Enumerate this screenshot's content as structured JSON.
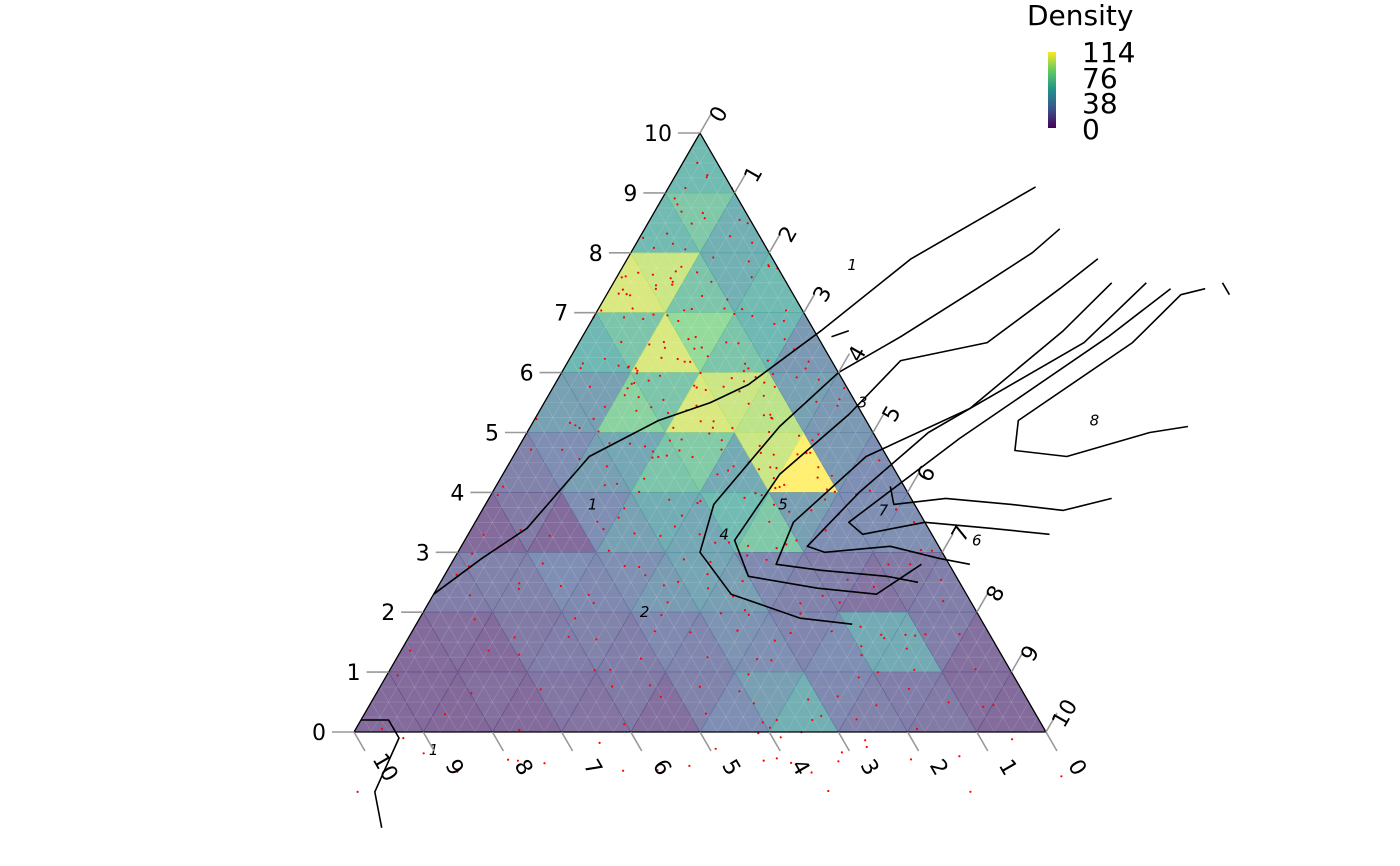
{
  "chart_data": {
    "type": "heatmap",
    "subtype": "ternary density plot with contours and points",
    "axes": {
      "left": {
        "ticks": [
          0,
          1,
          2,
          3,
          4,
          5,
          6,
          7,
          8,
          9,
          10
        ]
      },
      "right": {
        "ticks": [
          0,
          1,
          2,
          3,
          4,
          5,
          6,
          7,
          8,
          9,
          10
        ]
      },
      "bottom": {
        "ticks": [
          10,
          9,
          8,
          7,
          6,
          5,
          4,
          3,
          2,
          1,
          0
        ]
      }
    },
    "legend": {
      "title": "Density",
      "labels": [
        "114",
        "76",
        "38",
        "0"
      ],
      "placement": "top-right",
      "range": [
        0,
        114
      ],
      "colors": [
        "#440154",
        "#3b528b",
        "#21908c",
        "#5dc963",
        "#fde725"
      ]
    },
    "cell_opacity": 0.65,
    "density_bins": [
      {
        "top": 0,
        "bottom": 1,
        "values": [
          60
        ]
      },
      {
        "top": 1,
        "bottom": 2,
        "values": [
          60,
          70,
          52
        ]
      },
      {
        "top": 2,
        "bottom": 3,
        "values": [
          104,
          100,
          68,
          52,
          60
        ]
      },
      {
        "top": 3,
        "bottom": 4,
        "values": [
          58,
          68,
          104,
          84,
          68,
          58,
          36
        ]
      },
      {
        "top": 4,
        "bottom": 5,
        "values": [
          42,
          40,
          78,
          68,
          104,
          100,
          96,
          42,
          36
        ]
      },
      {
        "top": 5,
        "bottom": 6,
        "values": [
          22,
          28,
          40,
          46,
          68,
          72,
          48,
          100,
          114,
          36,
          28
        ]
      },
      {
        "top": 6,
        "bottom": 7,
        "values": [
          10,
          18,
          10,
          28,
          42,
          50,
          46,
          60,
          70,
          40,
          28,
          28,
          30
        ]
      },
      {
        "top": 7,
        "bottom": 8,
        "values": [
          20,
          22,
          22,
          28,
          26,
          30,
          38,
          44,
          40,
          26,
          22,
          20,
          14,
          18,
          20
        ]
      },
      {
        "top": 8,
        "bottom": 9,
        "values": [
          10,
          12,
          10,
          18,
          20,
          22,
          20,
          26,
          24,
          32,
          30,
          24,
          28,
          48,
          48,
          20,
          12
        ]
      },
      {
        "top": 9,
        "bottom": 10,
        "values": [
          10,
          10,
          8,
          12,
          10,
          16,
          14,
          18,
          12,
          22,
          28,
          40,
          52,
          26,
          22,
          20,
          18,
          12,
          10
        ]
      },
      {
        "top": 10,
        "bottom": 11,
        "values": [
          8,
          8,
          8,
          10,
          8,
          12,
          12,
          14,
          10,
          14,
          16,
          22,
          20,
          46,
          40,
          18,
          16,
          12,
          12,
          10,
          8
        ]
      }
    ],
    "contours": [
      {
        "level": "1",
        "points": [
          [
            0.9,
            5.3
          ],
          [
            1.3,
            4.9
          ],
          [
            2.1,
            4.1
          ],
          [
            3.3,
            3.4
          ],
          [
            4.2,
            2.8
          ],
          [
            4.5,
            2.4
          ],
          [
            4.8,
            1.8
          ],
          [
            5.4,
            1.1
          ],
          [
            6.6,
            0.8
          ],
          [
            7.1,
            0.4
          ],
          [
            7.7,
            0
          ]
        ]
      },
      {
        "level": "1",
        "points": [
          [
            11.6,
            1.2
          ],
          [
            11.0,
            0.8
          ],
          [
            10.1,
            0.7
          ],
          [
            9.8,
            0.4
          ],
          [
            9.8,
            0
          ]
        ]
      },
      {
        "level": "1",
        "points": [
          [
            3.3,
            3.8
          ],
          [
            3.4,
            3.6
          ]
        ]
      },
      {
        "level": "2",
        "points": [
          [
            1.6,
            6.0
          ],
          [
            2.0,
            5.8
          ],
          [
            2.6,
            5.3
          ],
          [
            3.4,
            4.6
          ],
          [
            4.0,
            4.0
          ],
          [
            4.9,
            3.6
          ],
          [
            6.2,
            3.3
          ],
          [
            7.0,
            3.5
          ],
          [
            7.7,
            4.3
          ],
          [
            8.1,
            5.5
          ],
          [
            8.2,
            6.3
          ]
        ]
      },
      {
        "level": "3",
        "points": [
          [
            2.1,
            6.8
          ],
          [
            2.6,
            6.5
          ],
          [
            3.5,
            5.9
          ],
          [
            3.8,
            4.8
          ],
          [
            4.7,
            4.5
          ],
          [
            5.7,
            4.0
          ],
          [
            6.8,
            3.9
          ],
          [
            7.4,
            4.4
          ],
          [
            7.6,
            5.5
          ],
          [
            7.7,
            6.4
          ],
          [
            7.2,
            6.8
          ]
        ]
      },
      {
        "level": "4",
        "points": [
          [
            2.5,
            7.2
          ],
          [
            3.3,
            6.9
          ],
          [
            4.6,
            6.2
          ],
          [
            5.4,
            5.1
          ],
          [
            6.5,
            4.6
          ],
          [
            7.2,
            4.7
          ],
          [
            7.3,
            5.4
          ],
          [
            7.4,
            6.4
          ],
          [
            7.5,
            6.9
          ]
        ]
      },
      {
        "level": "5",
        "points": [
          [
            2.5,
            7.7
          ],
          [
            3.5,
            7.3
          ],
          [
            5.0,
            5.8
          ],
          [
            6.0,
            5.3
          ],
          [
            6.9,
            5.0
          ],
          [
            7.0,
            5.3
          ],
          [
            6.9,
            6.2
          ],
          [
            7.1,
            7.0
          ],
          [
            7.2,
            7.5
          ]
        ]
      },
      {
        "level": "6",
        "points": [
          [
            2.6,
            8.1
          ],
          [
            3.4,
            7.6
          ],
          [
            5.1,
            6.3
          ],
          [
            6.5,
            5.4
          ],
          [
            6.7,
            5.7
          ],
          [
            6.5,
            6.5
          ],
          [
            6.6,
            7.5
          ],
          [
            6.7,
            8.4
          ]
        ]
      },
      {
        "level": "7",
        "points": [
          [
            5.9,
            5.7
          ],
          [
            6.2,
            5.9
          ],
          [
            6.1,
            6.6
          ],
          [
            6.2,
            7.6
          ],
          [
            6.3,
            8.4
          ],
          [
            6.1,
            9.0
          ]
        ]
      },
      {
        "level": "8",
        "points": [
          [
            2.6,
            8.6
          ],
          [
            2.7,
            8.3
          ],
          [
            3.5,
            8.0
          ],
          [
            4.8,
            7.0
          ],
          [
            5.3,
            7.2
          ],
          [
            5.4,
            8.0
          ],
          [
            5.0,
            9.0
          ],
          [
            4.9,
            9.5
          ]
        ]
      },
      {
        "level": "8",
        "points": [
          [
            2.7,
            9.0
          ],
          [
            2.5,
            8.8
          ]
        ]
      }
    ],
    "contour_labels": [
      {
        "text": "1",
        "at": [
          6.2,
          1.55
        ]
      },
      {
        "text": "1",
        "at": [
          10.3,
          1.3
        ]
      },
      {
        "text": "1",
        "at": [
          2.2,
          3.3
        ]
      },
      {
        "text": "2",
        "at": [
          8.0,
          3.2
        ]
      },
      {
        "text": "3",
        "at": [
          4.5,
          4.6
        ]
      },
      {
        "text": "4",
        "at": [
          6.7,
          3.7
        ]
      },
      {
        "text": "5",
        "at": [
          6.2,
          4.3
        ]
      },
      {
        "text": "6",
        "at": [
          6.8,
          7.4
        ]
      },
      {
        "text": "7",
        "at": [
          6.3,
          5.8
        ]
      },
      {
        "text": "8",
        "at": [
          4.8,
          8.1
        ]
      }
    ]
  }
}
